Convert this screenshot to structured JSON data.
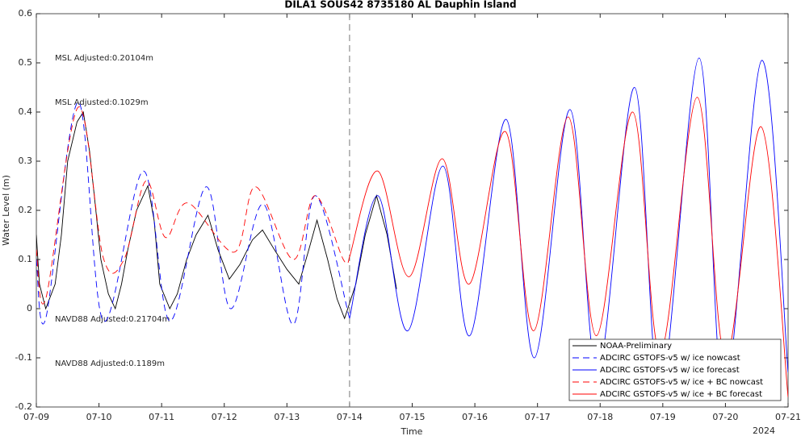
{
  "chart_data": {
    "type": "line",
    "title": "DILA1 SOUS42 8735180 AL Dauphin Island",
    "ylabel": "Water Level (m)",
    "xlabel": "Time",
    "x_year_label": "2024",
    "xlim": [
      0,
      12
    ],
    "xticks": [
      {
        "value": 0,
        "label": "07-09"
      },
      {
        "value": 1,
        "label": "07-10"
      },
      {
        "value": 2,
        "label": "07-11"
      },
      {
        "value": 3,
        "label": "07-12"
      },
      {
        "value": 4,
        "label": "07-13"
      },
      {
        "value": 5,
        "label": "07-14"
      },
      {
        "value": 6,
        "label": "07-15"
      },
      {
        "value": 7,
        "label": "07-16"
      },
      {
        "value": 8,
        "label": "07-17"
      },
      {
        "value": 9,
        "label": "07-18"
      },
      {
        "value": 10,
        "label": "07-19"
      },
      {
        "value": 11,
        "label": "07-20"
      },
      {
        "value": 12,
        "label": "07-21"
      }
    ],
    "ylim": [
      -0.2,
      0.6
    ],
    "yticks": [
      -0.2,
      -0.1,
      0,
      0.1,
      0.2,
      0.3,
      0.4,
      0.5,
      0.6
    ],
    "vline": 5,
    "legend": "lower right",
    "annotations": [
      {
        "text": "MSL Adjusted:0.20104m",
        "color": "#0000ff"
      },
      {
        "text": "MSL Adjusted:0.1029m",
        "color": "#ff0000"
      },
      {
        "text": "NAVD88 Adjusted:0.21704m",
        "color": "#0000ff"
      },
      {
        "text": "NAVD88 Adjusted:0.1189m",
        "color": "#ff0000"
      }
    ],
    "series": [
      {
        "name": "NOAA-Preliminary",
        "color": "#000000",
        "dash": "solid",
        "smooth": false,
        "x": [
          0,
          0.05,
          0.15,
          0.3,
          0.4,
          0.5,
          0.65,
          0.75,
          0.85,
          0.95,
          1.03,
          1.15,
          1.26,
          1.36,
          1.46,
          1.6,
          1.78,
          1.88,
          1.97,
          2.13,
          2.25,
          2.4,
          2.55,
          2.74,
          2.9,
          3.08,
          3.25,
          3.45,
          3.61,
          3.8,
          4.0,
          4.19,
          4.35,
          4.48,
          4.65,
          4.8,
          4.92,
          5.1,
          5.25,
          5.43,
          5.6,
          5.75
        ],
        "values": [
          0.15,
          0.05,
          0.0,
          0.05,
          0.15,
          0.3,
          0.38,
          0.4,
          0.32,
          0.2,
          0.1,
          0.03,
          0.0,
          0.05,
          0.12,
          0.2,
          0.25,
          0.18,
          0.05,
          0.0,
          0.03,
          0.1,
          0.15,
          0.19,
          0.12,
          0.06,
          0.09,
          0.14,
          0.16,
          0.12,
          0.08,
          0.05,
          0.12,
          0.18,
          0.1,
          0.02,
          -0.02,
          0.05,
          0.15,
          0.23,
          0.15,
          0.04
        ]
      },
      {
        "name": "ADCIRC GSTOFS-v5 w/ ice nowcast",
        "color": "#0000ff",
        "dash": "dashed",
        "smooth": true,
        "x": [
          0,
          0.15,
          0.67,
          1.07,
          1.71,
          2.13,
          2.71,
          3.1,
          3.62,
          4.1,
          4.45,
          5
        ],
        "values": [
          0.1,
          -0.02,
          0.42,
          -0.025,
          0.28,
          -0.025,
          0.248,
          0.0,
          0.213,
          -0.032,
          0.23,
          -0.02
        ]
      },
      {
        "name": "ADCIRC GSTOFS-v5 w/ ice forecast",
        "color": "#0000ff",
        "dash": "solid",
        "smooth": true,
        "x": [
          5,
          5.45,
          5.93,
          6.49,
          6.92,
          7.5,
          7.95,
          8.52,
          8.96,
          9.55,
          9.96,
          10.58,
          10.98,
          11.58,
          12
        ],
        "values": [
          -0.02,
          0.23,
          -0.045,
          0.29,
          -0.055,
          0.385,
          -0.1,
          0.405,
          -0.13,
          0.45,
          -0.17,
          0.51,
          -0.18,
          0.505,
          -0.13
        ]
      },
      {
        "name": "ADCIRC GSTOFS-v5 w/ ice + BC nowcast",
        "color": "#ff0000",
        "dash": "dashed",
        "smooth": true,
        "x": [
          0,
          0.15,
          0.67,
          1.07,
          1.4,
          1.75,
          2.06,
          2.42,
          3.16,
          3.5,
          4.1,
          4.45,
          4.9,
          5
        ],
        "values": [
          0.12,
          0.02,
          0.41,
          0.103,
          0.1,
          0.26,
          0.145,
          0.215,
          0.115,
          0.248,
          0.1,
          0.23,
          0.1,
          0.105
        ]
      },
      {
        "name": "ADCIRC GSTOFS-v5 w/ ice + BC forecast",
        "color": "#ff0000",
        "dash": "solid",
        "smooth": true,
        "x": [
          5,
          5.45,
          5.95,
          6.48,
          6.91,
          7.49,
          7.94,
          8.49,
          8.94,
          9.52,
          9.96,
          10.55,
          11.0,
          11.57,
          12
        ],
        "values": [
          0.105,
          0.28,
          0.065,
          0.305,
          0.05,
          0.36,
          -0.045,
          0.39,
          -0.055,
          0.4,
          -0.09,
          0.43,
          -0.1,
          0.37,
          -0.18
        ]
      }
    ]
  }
}
